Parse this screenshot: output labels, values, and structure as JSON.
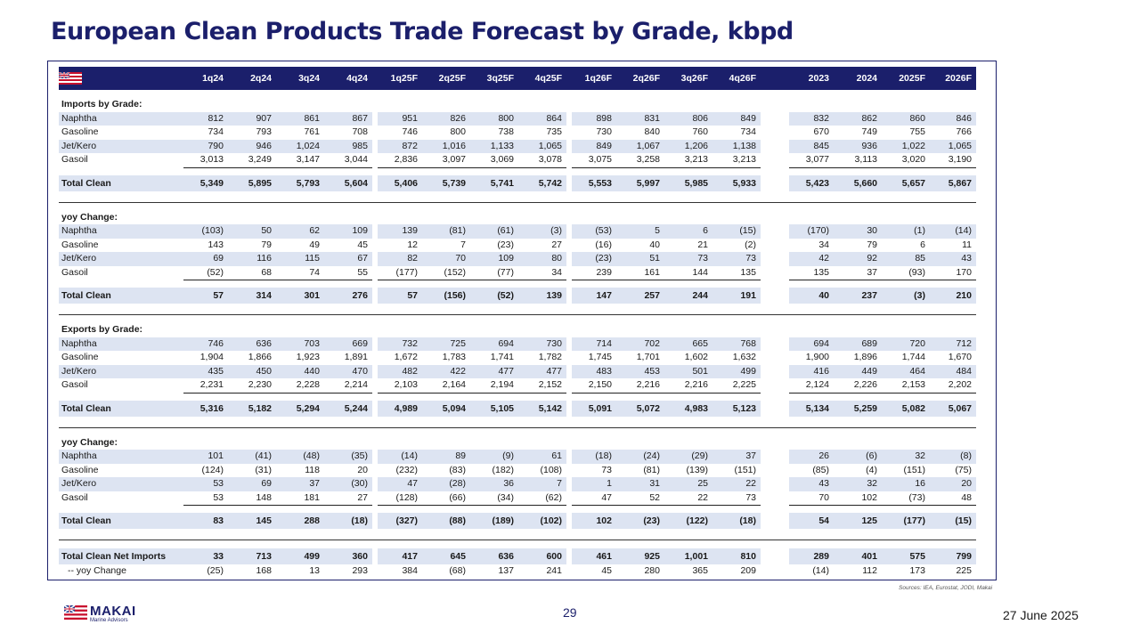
{
  "title": "European Clean Products Trade Forecast by Grade, kbpd",
  "columns": {
    "quarters_2024": [
      "1q24",
      "2q24",
      "3q24",
      "4q24"
    ],
    "quarters_2025": [
      "1q25F",
      "2q25F",
      "3q25F",
      "4q25F"
    ],
    "quarters_2026": [
      "1q26F",
      "2q26F",
      "3q26F",
      "4q26F"
    ],
    "years": [
      "2023",
      "2024",
      "2025F",
      "2026F"
    ]
  },
  "imports": {
    "header": "Imports by Grade:",
    "rows": [
      {
        "label": "Naphtha",
        "values": [
          "812",
          "907",
          "861",
          "867",
          "951",
          "826",
          "800",
          "864",
          "898",
          "831",
          "806",
          "849",
          "832",
          "862",
          "860",
          "846"
        ]
      },
      {
        "label": "Gasoline",
        "values": [
          "734",
          "793",
          "761",
          "708",
          "746",
          "800",
          "738",
          "735",
          "730",
          "840",
          "760",
          "734",
          "670",
          "749",
          "755",
          "766"
        ]
      },
      {
        "label": "Jet/Kero",
        "values": [
          "790",
          "946",
          "1,024",
          "985",
          "872",
          "1,016",
          "1,133",
          "1,065",
          "849",
          "1,067",
          "1,206",
          "1,138",
          "845",
          "936",
          "1,022",
          "1,065"
        ]
      },
      {
        "label": "Gasoil",
        "values": [
          "3,013",
          "3,249",
          "3,147",
          "3,044",
          "2,836",
          "3,097",
          "3,069",
          "3,078",
          "3,075",
          "3,258",
          "3,213",
          "3,213",
          "3,077",
          "3,113",
          "3,020",
          "3,190"
        ]
      }
    ],
    "total": {
      "label": "Total Clean",
      "values": [
        "5,349",
        "5,895",
        "5,793",
        "5,604",
        "5,406",
        "5,739",
        "5,741",
        "5,742",
        "5,553",
        "5,997",
        "5,985",
        "5,933",
        "5,423",
        "5,660",
        "5,657",
        "5,867"
      ]
    }
  },
  "imports_yoy": {
    "header": "yoy Change:",
    "rows": [
      {
        "label": "Naphtha",
        "values": [
          "(103)",
          "50",
          "62",
          "109",
          "139",
          "(81)",
          "(61)",
          "(3)",
          "(53)",
          "5",
          "6",
          "(15)",
          "(170)",
          "30",
          "(1)",
          "(14)"
        ]
      },
      {
        "label": "Gasoline",
        "values": [
          "143",
          "79",
          "49",
          "45",
          "12",
          "7",
          "(23)",
          "27",
          "(16)",
          "40",
          "21",
          "(2)",
          "34",
          "79",
          "6",
          "11"
        ]
      },
      {
        "label": "Jet/Kero",
        "values": [
          "69",
          "116",
          "115",
          "67",
          "82",
          "70",
          "109",
          "80",
          "(23)",
          "51",
          "73",
          "73",
          "42",
          "92",
          "85",
          "43"
        ]
      },
      {
        "label": "Gasoil",
        "values": [
          "(52)",
          "68",
          "74",
          "55",
          "(177)",
          "(152)",
          "(77)",
          "34",
          "239",
          "161",
          "144",
          "135",
          "135",
          "37",
          "(93)",
          "170"
        ]
      }
    ],
    "total": {
      "label": "Total Clean",
      "values": [
        "57",
        "314",
        "301",
        "276",
        "57",
        "(156)",
        "(52)",
        "139",
        "147",
        "257",
        "244",
        "191",
        "40",
        "237",
        "(3)",
        "210"
      ]
    }
  },
  "exports": {
    "header": "Exports by Grade:",
    "rows": [
      {
        "label": "Naphtha",
        "values": [
          "746",
          "636",
          "703",
          "669",
          "732",
          "725",
          "694",
          "730",
          "714",
          "702",
          "665",
          "768",
          "694",
          "689",
          "720",
          "712"
        ]
      },
      {
        "label": "Gasoline",
        "values": [
          "1,904",
          "1,866",
          "1,923",
          "1,891",
          "1,672",
          "1,783",
          "1,741",
          "1,782",
          "1,745",
          "1,701",
          "1,602",
          "1,632",
          "1,900",
          "1,896",
          "1,744",
          "1,670"
        ]
      },
      {
        "label": "Jet/Kero",
        "values": [
          "435",
          "450",
          "440",
          "470",
          "482",
          "422",
          "477",
          "477",
          "483",
          "453",
          "501",
          "499",
          "416",
          "449",
          "464",
          "484"
        ]
      },
      {
        "label": "Gasoil",
        "values": [
          "2,231",
          "2,230",
          "2,228",
          "2,214",
          "2,103",
          "2,164",
          "2,194",
          "2,152",
          "2,150",
          "2,216",
          "2,216",
          "2,225",
          "2,124",
          "2,226",
          "2,153",
          "2,202"
        ]
      }
    ],
    "total": {
      "label": "Total Clean",
      "values": [
        "5,316",
        "5,182",
        "5,294",
        "5,244",
        "4,989",
        "5,094",
        "5,105",
        "5,142",
        "5,091",
        "5,072",
        "4,983",
        "5,123",
        "5,134",
        "5,259",
        "5,082",
        "5,067"
      ]
    }
  },
  "exports_yoy": {
    "header": "yoy Change:",
    "rows": [
      {
        "label": "Naphtha",
        "values": [
          "101",
          "(41)",
          "(48)",
          "(35)",
          "(14)",
          "89",
          "(9)",
          "61",
          "(18)",
          "(24)",
          "(29)",
          "37",
          "26",
          "(6)",
          "32",
          "(8)"
        ]
      },
      {
        "label": "Gasoline",
        "values": [
          "(124)",
          "(31)",
          "118",
          "20",
          "(232)",
          "(83)",
          "(182)",
          "(108)",
          "73",
          "(81)",
          "(139)",
          "(151)",
          "(85)",
          "(4)",
          "(151)",
          "(75)"
        ]
      },
      {
        "label": "Jet/Kero",
        "values": [
          "53",
          "69",
          "37",
          "(30)",
          "47",
          "(28)",
          "36",
          "7",
          "1",
          "31",
          "25",
          "22",
          "43",
          "32",
          "16",
          "20"
        ]
      },
      {
        "label": "Gasoil",
        "values": [
          "53",
          "148",
          "181",
          "27",
          "(128)",
          "(66)",
          "(34)",
          "(62)",
          "47",
          "52",
          "22",
          "73",
          "70",
          "102",
          "(73)",
          "48"
        ]
      }
    ],
    "total": {
      "label": "Total Clean",
      "values": [
        "83",
        "145",
        "288",
        "(18)",
        "(327)",
        "(88)",
        "(189)",
        "(102)",
        "102",
        "(23)",
        "(122)",
        "(18)",
        "54",
        "125",
        "(177)",
        "(15)"
      ]
    }
  },
  "net_imports": {
    "total": {
      "label": "Total Clean Net Imports",
      "values": [
        "33",
        "713",
        "499",
        "360",
        "417",
        "645",
        "636",
        "600",
        "461",
        "925",
        "1,001",
        "810",
        "289",
        "401",
        "575",
        "799"
      ]
    },
    "yoy": {
      "label": "-- yoy Change",
      "values": [
        "(25)",
        "168",
        "13",
        "293",
        "384",
        "(68)",
        "137",
        "241",
        "45",
        "280",
        "365",
        "209",
        "(14)",
        "112",
        "173",
        "225"
      ]
    }
  },
  "source": "Sources: IEA, Eurostat, JODI, Makai",
  "logo": {
    "name": "MAKAI",
    "subtitle": "Marine Advisors"
  },
  "page_number": "29",
  "date": "27 June 2025",
  "colors": {
    "navy": "#1b1f6b",
    "row_shade": "#dde4f2",
    "flag_red": "#c8102e"
  }
}
